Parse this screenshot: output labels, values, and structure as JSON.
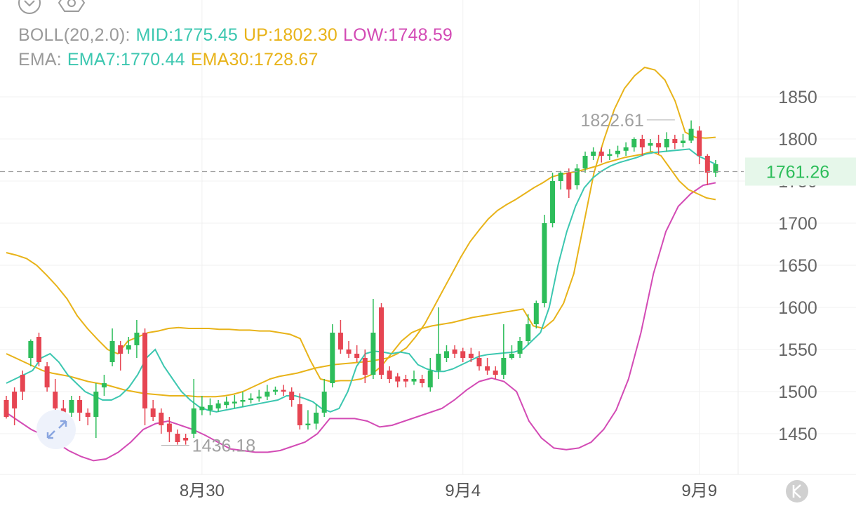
{
  "indicators": {
    "boll": {
      "label": "BOLL(20,2.0):",
      "mid": "MID:1775.45",
      "up": "UP:1802.30",
      "low": "LOW:1748.59"
    },
    "ema": {
      "label": "EMA:",
      "ema7": "EMA7:1770.44",
      "ema30": "EMA30:1728.67"
    }
  },
  "colors": {
    "up_candle": "#2dbd5a",
    "down_candle": "#e64552",
    "boll_mid": "#3cc7b0",
    "boll_up": "#e8b319",
    "boll_low": "#d34bb5",
    "ema7": "#3cc7b0",
    "ema30": "#e8b319",
    "label_gray": "#9a9a9a",
    "price_tag_bg": "#e6f7ea"
  },
  "icons": [
    "chevron-down-icon",
    "settings-hex-icon",
    "expand-arrows-icon",
    "k-line-icon"
  ],
  "chart_data": {
    "type": "candlestick",
    "yticks": [
      1450,
      1500,
      1550,
      1600,
      1650,
      1700,
      1750,
      1800,
      1850
    ],
    "ylim": [
      1415,
      1880
    ],
    "xticks": [
      {
        "label": "8月30",
        "index": 24
      },
      {
        "label": "9月4",
        "index": 56
      },
      {
        "label": "9月9",
        "index": 85
      }
    ],
    "current_price": "1761.26",
    "high_annotation": {
      "label": "1822.61",
      "index": 82,
      "value": 1822.61
    },
    "low_annotation": {
      "label": "1436.18",
      "index": 19,
      "value": 1436.18
    },
    "candles": [
      [
        1490,
        1470,
        1495,
        1468
      ],
      [
        1500,
        1480,
        1505,
        1460
      ],
      [
        1520,
        1500,
        1525,
        1490
      ],
      [
        1540,
        1560,
        1562,
        1530
      ],
      [
        1565,
        1535,
        1570,
        1530
      ],
      [
        1530,
        1505,
        1535,
        1500
      ],
      [
        1500,
        1480,
        1515,
        1470
      ],
      [
        1480,
        1475,
        1490,
        1465
      ],
      [
        1475,
        1490,
        1495,
        1470
      ],
      [
        1490,
        1475,
        1495,
        1465
      ],
      [
        1475,
        1470,
        1480,
        1460
      ],
      [
        1470,
        1500,
        1510,
        1445
      ],
      [
        1505,
        1510,
        1520,
        1495
      ],
      [
        1535,
        1560,
        1575,
        1530
      ],
      [
        1555,
        1545,
        1560,
        1525
      ],
      [
        1550,
        1555,
        1565,
        1545
      ],
      [
        1555,
        1570,
        1585,
        1540
      ],
      [
        1570,
        1480,
        1575,
        1460
      ],
      [
        1480,
        1470,
        1490,
        1465
      ],
      [
        1475,
        1460,
        1480,
        1450
      ],
      [
        1462,
        1452,
        1470,
        1440
      ],
      [
        1450,
        1440,
        1455,
        1437
      ],
      [
        1445,
        1442,
        1450,
        1437
      ],
      [
        1450,
        1480,
        1515,
        1445
      ],
      [
        1478,
        1482,
        1495,
        1472
      ],
      [
        1478,
        1484,
        1492,
        1472
      ],
      [
        1480,
        1486,
        1490,
        1476
      ],
      [
        1484,
        1488,
        1494,
        1480
      ],
      [
        1486,
        1488,
        1496,
        1480
      ],
      [
        1488,
        1490,
        1500,
        1482
      ],
      [
        1490,
        1492,
        1498,
        1486
      ],
      [
        1492,
        1494,
        1502,
        1488
      ],
      [
        1494,
        1500,
        1508,
        1490
      ],
      [
        1500,
        1502,
        1506,
        1496
      ],
      [
        1502,
        1500,
        1508,
        1495
      ],
      [
        1500,
        1490,
        1505,
        1482
      ],
      [
        1485,
        1460,
        1498,
        1455
      ],
      [
        1460,
        1462,
        1478,
        1455
      ],
      [
        1462,
        1475,
        1485,
        1455
      ],
      [
        1475,
        1500,
        1515,
        1470
      ],
      [
        1510,
        1570,
        1580,
        1505
      ],
      [
        1570,
        1550,
        1585,
        1545
      ],
      [
        1550,
        1545,
        1560,
        1540
      ],
      [
        1545,
        1540,
        1555,
        1535
      ],
      [
        1540,
        1520,
        1550,
        1510
      ],
      [
        1520,
        1570,
        1610,
        1515
      ],
      [
        1600,
        1520,
        1605,
        1515
      ],
      [
        1525,
        1515,
        1530,
        1510
      ],
      [
        1518,
        1512,
        1522,
        1505
      ],
      [
        1515,
        1512,
        1520,
        1505
      ],
      [
        1512,
        1515,
        1525,
        1508
      ],
      [
        1515,
        1510,
        1520,
        1505
      ],
      [
        1505,
        1525,
        1540,
        1500
      ],
      [
        1525,
        1545,
        1600,
        1515
      ],
      [
        1540,
        1548,
        1555,
        1535
      ],
      [
        1550,
        1545,
        1555,
        1540
      ],
      [
        1548,
        1540,
        1552,
        1535
      ],
      [
        1545,
        1540,
        1552,
        1535
      ],
      [
        1540,
        1530,
        1548,
        1525
      ],
      [
        1530,
        1525,
        1540,
        1520
      ],
      [
        1525,
        1520,
        1530,
        1515
      ],
      [
        1520,
        1540,
        1580,
        1515
      ],
      [
        1540,
        1545,
        1555,
        1538
      ],
      [
        1545,
        1560,
        1565,
        1540
      ],
      [
        1560,
        1580,
        1592,
        1555
      ],
      [
        1580,
        1605,
        1608,
        1575
      ],
      [
        1605,
        1700,
        1710,
        1600
      ],
      [
        1700,
        1750,
        1760,
        1695
      ],
      [
        1750,
        1760,
        1762,
        1740
      ],
      [
        1760,
        1740,
        1765,
        1730
      ],
      [
        1745,
        1765,
        1770,
        1740
      ],
      [
        1765,
        1780,
        1785,
        1760
      ],
      [
        1780,
        1785,
        1790,
        1775
      ],
      [
        1785,
        1780,
        1790,
        1772
      ],
      [
        1780,
        1782,
        1788,
        1775
      ],
      [
        1782,
        1786,
        1792,
        1778
      ],
      [
        1786,
        1790,
        1796,
        1780
      ],
      [
        1790,
        1800,
        1802,
        1785
      ],
      [
        1800,
        1790,
        1805,
        1780
      ],
      [
        1792,
        1795,
        1800,
        1785
      ],
      [
        1795,
        1790,
        1805,
        1782
      ],
      [
        1790,
        1800,
        1808,
        1785
      ],
      [
        1800,
        1795,
        1805,
        1788
      ],
      [
        1795,
        1798,
        1806,
        1790
      ],
      [
        1798,
        1812,
        1822,
        1795
      ],
      [
        1810,
        1780,
        1815,
        1770
      ],
      [
        1780,
        1760,
        1782,
        1745
      ],
      [
        1760,
        1770,
        1775,
        1755
      ]
    ],
    "lines": {
      "boll_up": [
        1665,
        1662,
        1658,
        1650,
        1638,
        1625,
        1610,
        1590,
        1575,
        1562,
        1550,
        1545,
        1560,
        1565,
        1570,
        1572,
        1575,
        1576,
        1575,
        1575,
        1575,
        1574,
        1574,
        1573,
        1573,
        1572,
        1572,
        1570,
        1568,
        1563,
        1537,
        1515,
        1512,
        1513,
        1513,
        1515,
        1520,
        1530,
        1545,
        1560,
        1570,
        1575,
        1578,
        1580,
        1582,
        1585,
        1588,
        1590,
        1592,
        1594,
        1596,
        1598,
        1578,
        1575,
        1585,
        1605,
        1640,
        1700,
        1760,
        1800,
        1835,
        1860,
        1875,
        1885,
        1882,
        1870,
        1845,
        1808,
        1802,
        1801,
        1802
      ],
      "boll_low": [
        1475,
        1465,
        1455,
        1448,
        1440,
        1430,
        1423,
        1418,
        1420,
        1428,
        1440,
        1455,
        1462,
        1465,
        1460,
        1455,
        1448,
        1440,
        1432,
        1430,
        1428,
        1428,
        1430,
        1435,
        1440,
        1450,
        1468,
        1468,
        1468,
        1465,
        1458,
        1460,
        1465,
        1470,
        1475,
        1480,
        1490,
        1502,
        1512,
        1516,
        1512,
        1500,
        1465,
        1445,
        1433,
        1431,
        1433,
        1440,
        1455,
        1478,
        1515,
        1570,
        1640,
        1690,
        1720,
        1735,
        1745,
        1748
      ],
      "ema7": [
        1510,
        1515,
        1520,
        1525,
        1540,
        1545,
        1535,
        1520,
        1510,
        1500,
        1495,
        1490,
        1490,
        1495,
        1505,
        1520,
        1540,
        1550,
        1530,
        1515,
        1500,
        1490,
        1482,
        1478,
        1476,
        1478,
        1480,
        1482,
        1484,
        1486,
        1488,
        1490,
        1495,
        1495,
        1492,
        1488,
        1480,
        1476,
        1480,
        1500,
        1530,
        1545,
        1548,
        1547,
        1545,
        1547,
        1545,
        1532,
        1527,
        1524,
        1524,
        1527,
        1532,
        1537,
        1542,
        1544,
        1545,
        1546,
        1547,
        1550,
        1560,
        1570,
        1600,
        1650,
        1690,
        1720,
        1742,
        1754,
        1762,
        1768,
        1772,
        1775,
        1778,
        1782,
        1784,
        1785,
        1786,
        1787,
        1788,
        1780,
        1775,
        1770
      ],
      "ema30": [
        1545,
        1540,
        1535,
        1530,
        1525,
        1522,
        1520,
        1518,
        1515,
        1512,
        1510,
        1508,
        1505,
        1502,
        1500,
        1498,
        1497,
        1496,
        1495,
        1495,
        1495,
        1494,
        1494,
        1494,
        1495,
        1497,
        1500,
        1505,
        1510,
        1515,
        1518,
        1520,
        1522,
        1525,
        1528,
        1530,
        1532,
        1533,
        1534,
        1535,
        1536,
        1538,
        1540,
        1545,
        1552,
        1565,
        1580,
        1600,
        1620,
        1640,
        1660,
        1678,
        1692,
        1705,
        1715,
        1722,
        1728,
        1735,
        1742,
        1748,
        1755,
        1758,
        1760,
        1762,
        1765,
        1768,
        1772,
        1775,
        1778,
        1780,
        1782,
        1785,
        1780,
        1765,
        1750,
        1740,
        1735,
        1730,
        1728
      ]
    }
  }
}
